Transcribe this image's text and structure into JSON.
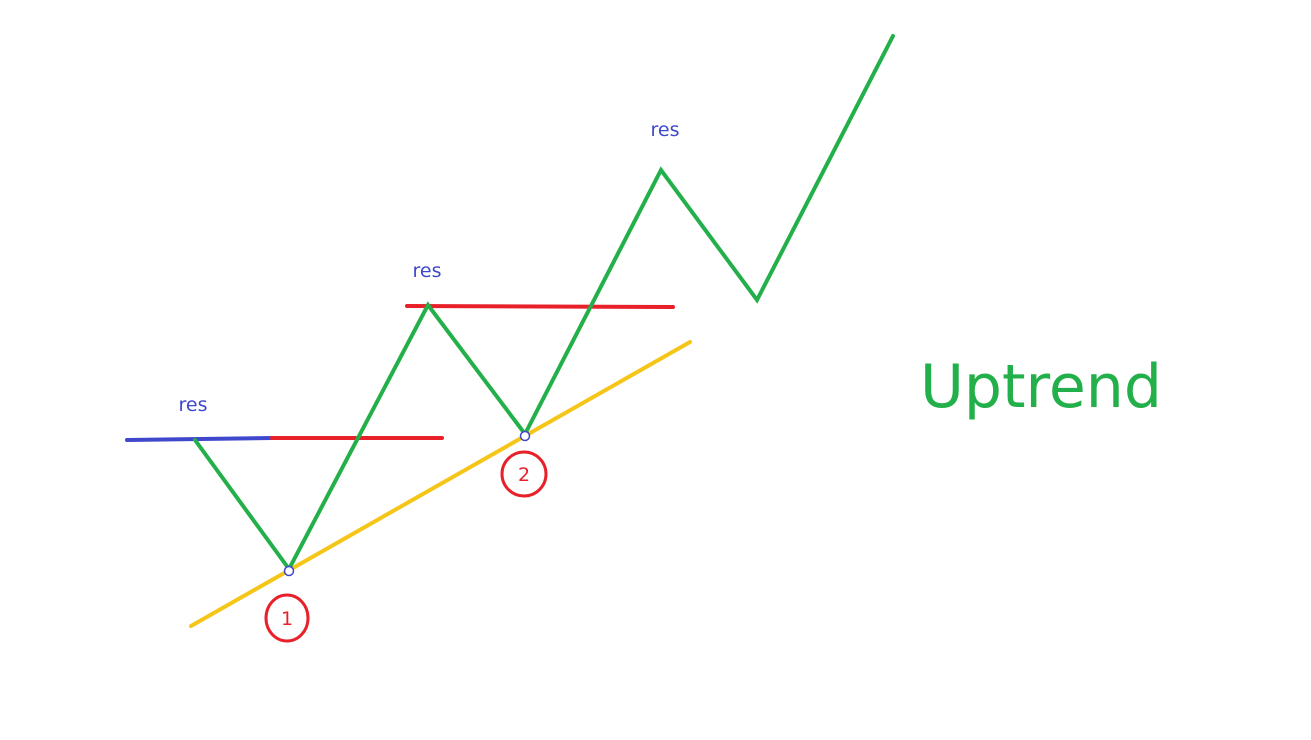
{
  "title": "Uptrend",
  "labels": {
    "res_1": "res",
    "res_2": "res",
    "res_3": "res",
    "touch_1": "1",
    "touch_2": "2"
  },
  "colors": {
    "price_line": "#23b04a",
    "trend_line": "#f5c518",
    "resistance_original": "#3f48cc",
    "resistance_broken": "#e8202a",
    "res_text": "#3f48cc",
    "marker_ring": "#e8202a",
    "touch_dot": "#3f48cc",
    "title_text": "#23b04a"
  }
}
